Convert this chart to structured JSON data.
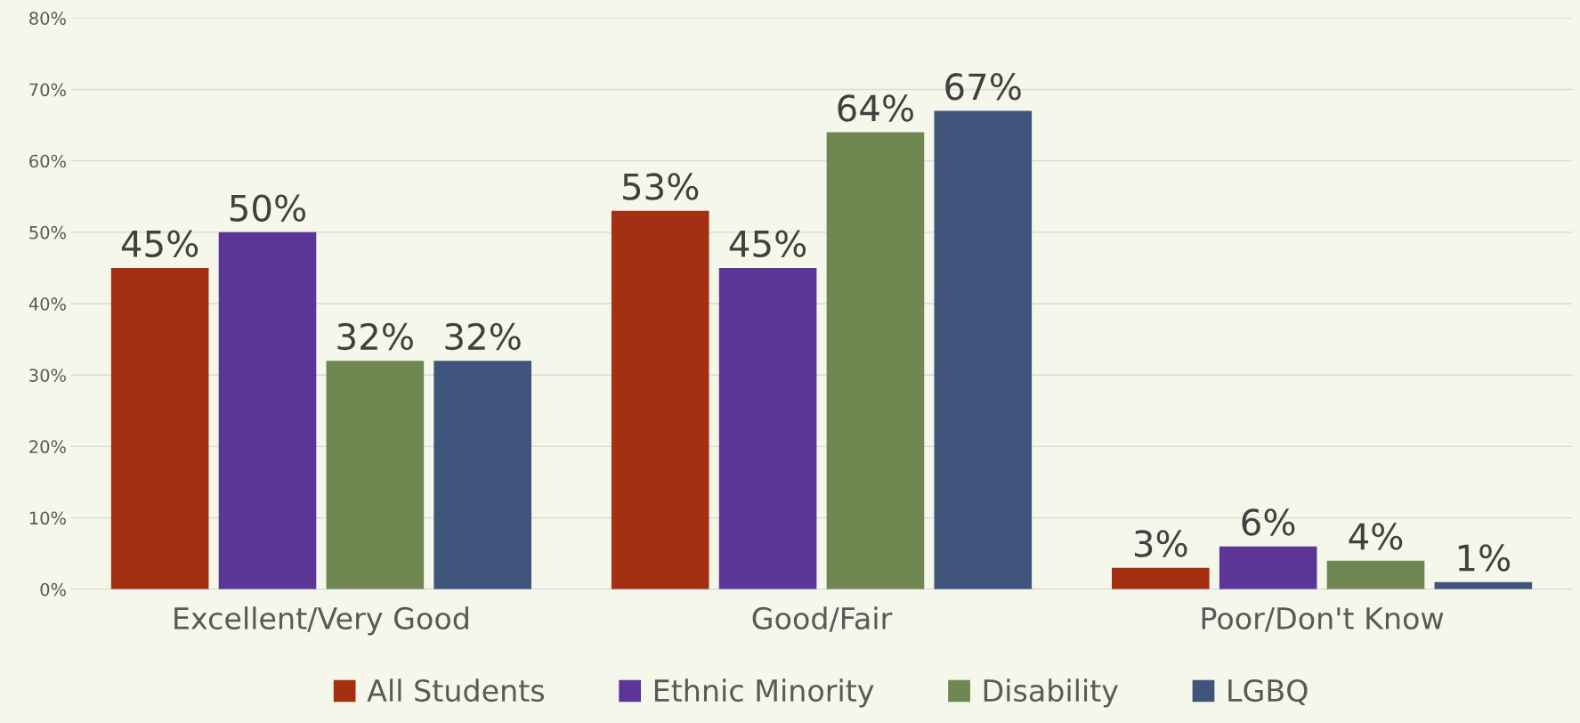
{
  "chart_data": {
    "type": "bar",
    "categories": [
      "Excellent/Very Good",
      "Good/Fair",
      "Poor/Don't Know"
    ],
    "series": [
      {
        "name": "All Students",
        "color": "#a52f11",
        "values": [
          45,
          53,
          3
        ],
        "value_labels": [
          "45%",
          "53%",
          "3%"
        ]
      },
      {
        "name": "Ethnic Minority",
        "color": "#5c3697",
        "values": [
          50,
          45,
          6
        ],
        "value_labels": [
          "50%",
          "45%",
          "6%"
        ]
      },
      {
        "name": "Disability",
        "color": "#6f8751",
        "values": [
          32,
          64,
          4
        ],
        "value_labels": [
          "32%",
          "64%",
          "4%"
        ]
      },
      {
        "name": "LGBQ",
        "color": "#3f557b",
        "values": [
          32,
          67,
          1
        ],
        "value_labels": [
          "32%",
          "67%",
          "1%"
        ]
      }
    ],
    "ylim": [
      0,
      80
    ],
    "yticks": [
      {
        "value": 0,
        "label": "0%"
      },
      {
        "value": 10,
        "label": "10%"
      },
      {
        "value": 20,
        "label": "20%"
      },
      {
        "value": 30,
        "label": "30%"
      },
      {
        "value": 40,
        "label": "40%"
      },
      {
        "value": 50,
        "label": "50%"
      },
      {
        "value": 60,
        "label": "60%"
      },
      {
        "value": 70,
        "label": "70%"
      },
      {
        "value": 80,
        "label": "80%"
      }
    ],
    "grid": "y",
    "legend": "bottom"
  }
}
